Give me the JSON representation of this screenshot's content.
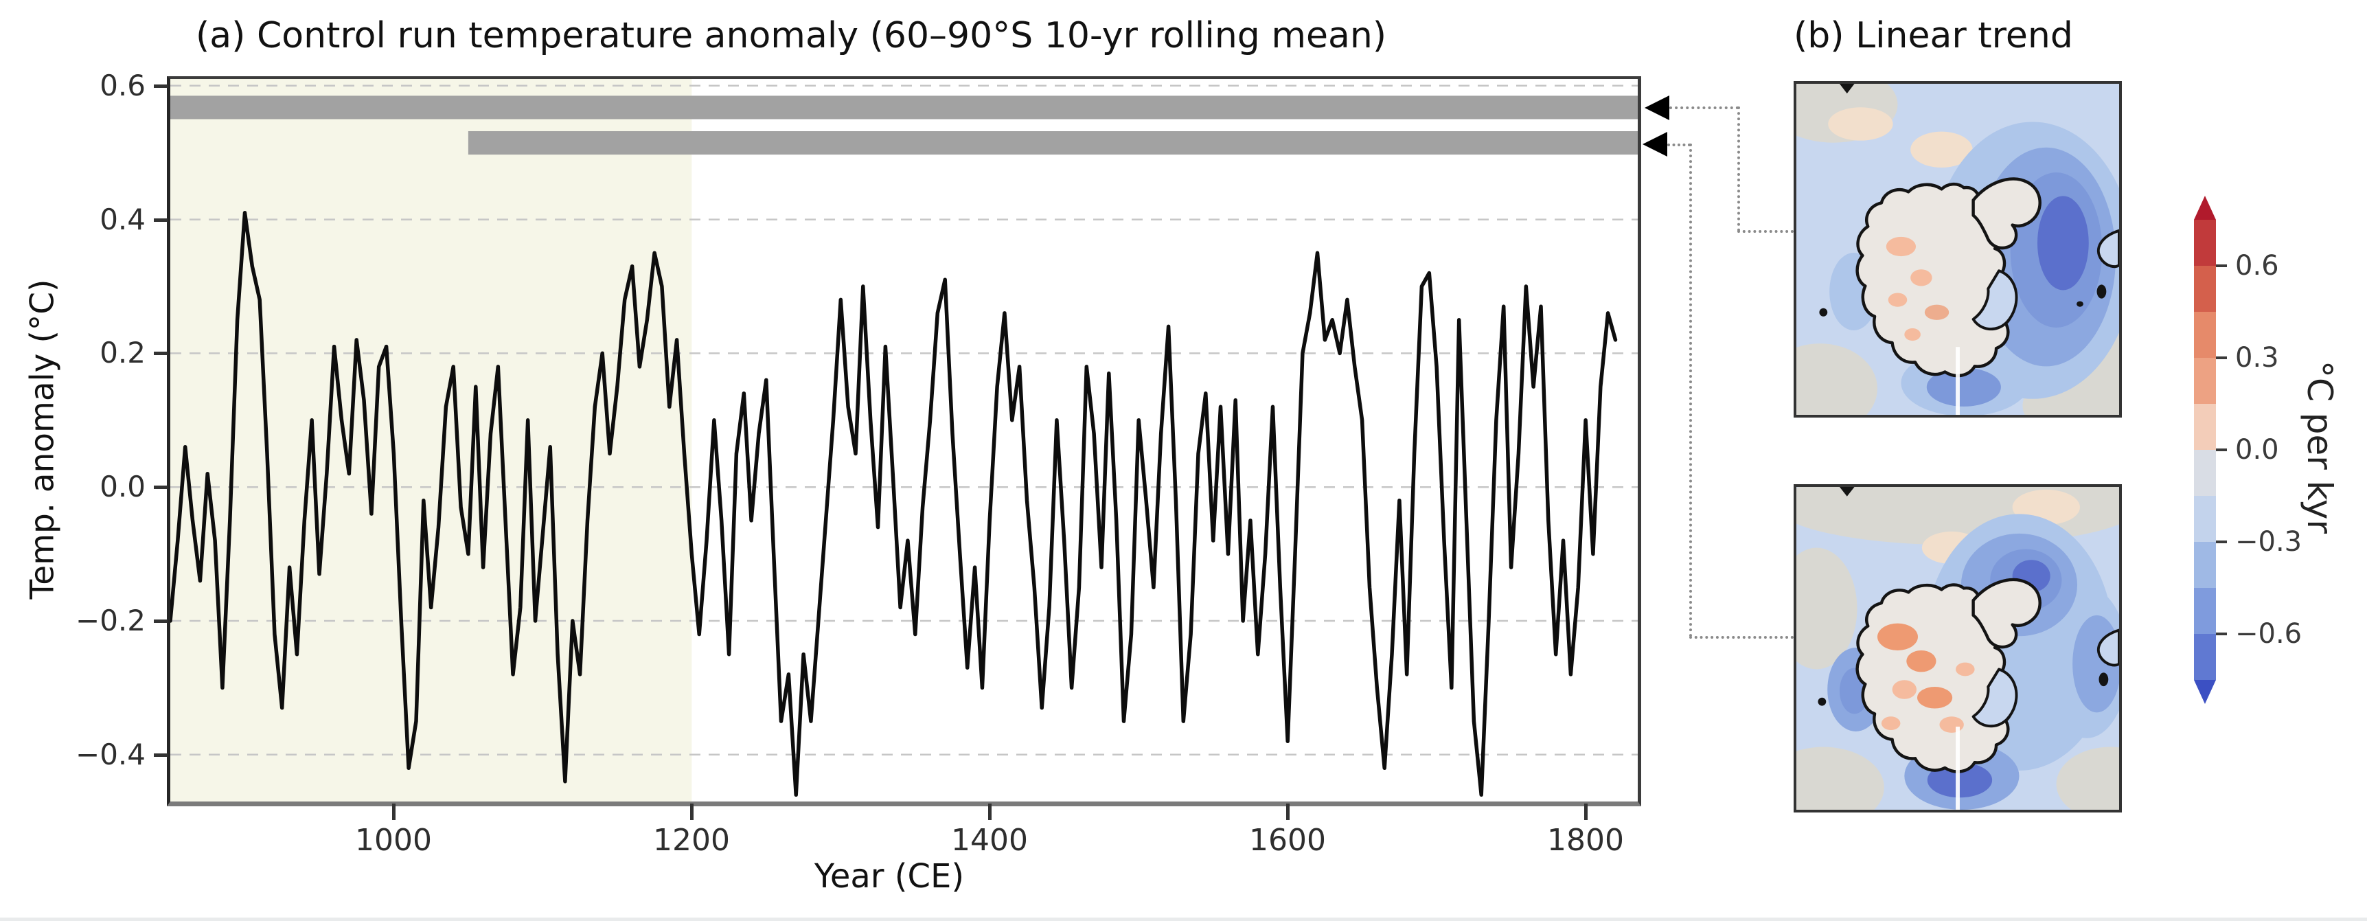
{
  "panel_a": {
    "title": "(a) Control run temperature anomaly (60–90°S 10-yr rolling mean)",
    "xlabel": "Year (CE)",
    "ylabel": "Temp. anomaly (°C)"
  },
  "panel_b": {
    "title": "(b) Linear trend"
  },
  "colorbar": {
    "label": "°C per kyr",
    "ticks": [
      "0.6",
      "0.3",
      "0.0",
      "−0.3",
      "−0.6"
    ],
    "range": [
      -0.75,
      0.75
    ]
  },
  "palette": {
    "shade_yellow": "#f6f6e8",
    "bar_gray": "#a2a2a2",
    "line_black": "#0d0d0d",
    "grid_gray": "#c6c6c6",
    "connector_gray": "#8a8a8a",
    "map_base": "#c8d7ef",
    "map_gray": "#d9d8d2",
    "map_peach": "#f2dfcc",
    "map_blue1": "#aec6ea",
    "map_blue2": "#8ca8e0",
    "map_blue3": "#7d99da",
    "map_blue4": "#5b70cc",
    "map_land": "#ebe7e2",
    "map_orange1": "#f5bb9e",
    "map_orange2": "#ee9a72",
    "map_outline": "#141414",
    "cb_arrow_top": "#b11a2c",
    "cb_arrow_bottom": "#3c50c3",
    "cb_stops": [
      "#c13a3b",
      "#d4604c",
      "#e68a6a",
      "#eda283",
      "#f3cdb9",
      "#d9dde5",
      "#c3d3ec",
      "#9fb9e5",
      "#7f9bdd",
      "#6079d2"
    ]
  },
  "chart_data": {
    "type": "line",
    "title": "(a) Control run temperature anomaly (60–90°S 10-yr rolling mean)",
    "xlabel": "Year (CE)",
    "ylabel": "Temp. anomaly (°C)",
    "xlim": [
      850,
      1835
    ],
    "ylim": [
      -0.47,
      0.61
    ],
    "xticks": [
      1000,
      1200,
      1400,
      1600,
      1800
    ],
    "yticks": [
      0.6,
      0.4,
      0.2,
      0.0,
      -0.2,
      -0.4
    ],
    "grid": "horizontal-dashed",
    "legend": "none",
    "shaded_region": {
      "x_start": 850,
      "x_end": 1200
    },
    "period_bars": [
      {
        "x_start": 850,
        "x_end": 1835,
        "y_top": 0.585,
        "y_bottom": 0.55
      },
      {
        "x_start": 1050,
        "x_end": 1835,
        "y_top": 0.532,
        "y_bottom": 0.497
      }
    ],
    "series": [
      {
        "name": "temp-anomaly-10yr-rolling-mean",
        "points": [
          [
            850,
            -0.2
          ],
          [
            855,
            -0.08
          ],
          [
            860,
            0.06
          ],
          [
            865,
            -0.05
          ],
          [
            870,
            -0.14
          ],
          [
            875,
            0.02
          ],
          [
            880,
            -0.08
          ],
          [
            885,
            -0.3
          ],
          [
            890,
            -0.05
          ],
          [
            895,
            0.25
          ],
          [
            900,
            0.41
          ],
          [
            905,
            0.33
          ],
          [
            910,
            0.28
          ],
          [
            915,
            0.05
          ],
          [
            920,
            -0.22
          ],
          [
            925,
            -0.33
          ],
          [
            930,
            -0.12
          ],
          [
            935,
            -0.25
          ],
          [
            940,
            -0.05
          ],
          [
            945,
            0.1
          ],
          [
            950,
            -0.13
          ],
          [
            955,
            0.02
          ],
          [
            960,
            0.21
          ],
          [
            965,
            0.1
          ],
          [
            970,
            0.02
          ],
          [
            975,
            0.22
          ],
          [
            980,
            0.13
          ],
          [
            985,
            -0.04
          ],
          [
            990,
            0.18
          ],
          [
            995,
            0.21
          ],
          [
            1000,
            0.05
          ],
          [
            1005,
            -0.2
          ],
          [
            1010,
            -0.42
          ],
          [
            1015,
            -0.35
          ],
          [
            1020,
            -0.02
          ],
          [
            1025,
            -0.18
          ],
          [
            1030,
            -0.06
          ],
          [
            1035,
            0.12
          ],
          [
            1040,
            0.18
          ],
          [
            1045,
            -0.03
          ],
          [
            1050,
            -0.1
          ],
          [
            1055,
            0.15
          ],
          [
            1060,
            -0.12
          ],
          [
            1065,
            0.08
          ],
          [
            1070,
            0.18
          ],
          [
            1075,
            -0.05
          ],
          [
            1080,
            -0.28
          ],
          [
            1085,
            -0.18
          ],
          [
            1090,
            0.1
          ],
          [
            1095,
            -0.2
          ],
          [
            1100,
            -0.07
          ],
          [
            1105,
            0.06
          ],
          [
            1110,
            -0.25
          ],
          [
            1115,
            -0.44
          ],
          [
            1120,
            -0.2
          ],
          [
            1125,
            -0.28
          ],
          [
            1130,
            -0.05
          ],
          [
            1135,
            0.12
          ],
          [
            1140,
            0.2
          ],
          [
            1145,
            0.05
          ],
          [
            1150,
            0.15
          ],
          [
            1155,
            0.28
          ],
          [
            1160,
            0.33
          ],
          [
            1165,
            0.18
          ],
          [
            1170,
            0.25
          ],
          [
            1175,
            0.35
          ],
          [
            1180,
            0.3
          ],
          [
            1185,
            0.12
          ],
          [
            1190,
            0.22
          ],
          [
            1195,
            0.05
          ],
          [
            1200,
            -0.1
          ],
          [
            1205,
            -0.22
          ],
          [
            1210,
            -0.08
          ],
          [
            1215,
            0.1
          ],
          [
            1220,
            -0.05
          ],
          [
            1225,
            -0.25
          ],
          [
            1230,
            0.05
          ],
          [
            1235,
            0.14
          ],
          [
            1240,
            -0.05
          ],
          [
            1245,
            0.08
          ],
          [
            1250,
            0.16
          ],
          [
            1255,
            -0.1
          ],
          [
            1260,
            -0.35
          ],
          [
            1265,
            -0.28
          ],
          [
            1270,
            -0.46
          ],
          [
            1275,
            -0.25
          ],
          [
            1280,
            -0.35
          ],
          [
            1285,
            -0.2
          ],
          [
            1290,
            -0.05
          ],
          [
            1295,
            0.1
          ],
          [
            1300,
            0.28
          ],
          [
            1305,
            0.12
          ],
          [
            1310,
            0.05
          ],
          [
            1315,
            0.3
          ],
          [
            1320,
            0.1
          ],
          [
            1325,
            -0.06
          ],
          [
            1330,
            0.21
          ],
          [
            1335,
            0.02
          ],
          [
            1340,
            -0.18
          ],
          [
            1345,
            -0.08
          ],
          [
            1350,
            -0.22
          ],
          [
            1355,
            -0.03
          ],
          [
            1360,
            0.1
          ],
          [
            1365,
            0.26
          ],
          [
            1370,
            0.31
          ],
          [
            1375,
            0.08
          ],
          [
            1380,
            -0.1
          ],
          [
            1385,
            -0.27
          ],
          [
            1390,
            -0.12
          ],
          [
            1395,
            -0.3
          ],
          [
            1400,
            -0.05
          ],
          [
            1405,
            0.15
          ],
          [
            1410,
            0.26
          ],
          [
            1415,
            0.1
          ],
          [
            1420,
            0.18
          ],
          [
            1425,
            -0.02
          ],
          [
            1430,
            -0.15
          ],
          [
            1435,
            -0.33
          ],
          [
            1440,
            -0.18
          ],
          [
            1445,
            0.1
          ],
          [
            1450,
            -0.08
          ],
          [
            1455,
            -0.3
          ],
          [
            1460,
            -0.15
          ],
          [
            1465,
            0.18
          ],
          [
            1470,
            0.08
          ],
          [
            1475,
            -0.12
          ],
          [
            1480,
            0.17
          ],
          [
            1485,
            -0.05
          ],
          [
            1490,
            -0.35
          ],
          [
            1495,
            -0.22
          ],
          [
            1500,
            0.1
          ],
          [
            1505,
            -0.02
          ],
          [
            1510,
            -0.15
          ],
          [
            1515,
            0.08
          ],
          [
            1520,
            0.24
          ],
          [
            1525,
            -0.02
          ],
          [
            1530,
            -0.35
          ],
          [
            1535,
            -0.22
          ],
          [
            1540,
            0.05
          ],
          [
            1545,
            0.14
          ],
          [
            1550,
            -0.08
          ],
          [
            1555,
            0.12
          ],
          [
            1560,
            -0.1
          ],
          [
            1565,
            0.13
          ],
          [
            1570,
            -0.2
          ],
          [
            1575,
            -0.05
          ],
          [
            1580,
            -0.25
          ],
          [
            1585,
            -0.1
          ],
          [
            1590,
            0.12
          ],
          [
            1595,
            -0.15
          ],
          [
            1600,
            -0.38
          ],
          [
            1605,
            -0.1
          ],
          [
            1610,
            0.2
          ],
          [
            1615,
            0.26
          ],
          [
            1620,
            0.35
          ],
          [
            1625,
            0.22
          ],
          [
            1630,
            0.25
          ],
          [
            1635,
            0.2
          ],
          [
            1640,
            0.28
          ],
          [
            1645,
            0.18
          ],
          [
            1650,
            0.1
          ],
          [
            1655,
            -0.15
          ],
          [
            1660,
            -0.3
          ],
          [
            1665,
            -0.42
          ],
          [
            1670,
            -0.25
          ],
          [
            1675,
            -0.02
          ],
          [
            1680,
            -0.28
          ],
          [
            1685,
            0.05
          ],
          [
            1690,
            0.3
          ],
          [
            1695,
            0.32
          ],
          [
            1700,
            0.18
          ],
          [
            1705,
            -0.08
          ],
          [
            1710,
            -0.3
          ],
          [
            1715,
            0.25
          ],
          [
            1720,
            -0.05
          ],
          [
            1725,
            -0.35
          ],
          [
            1730,
            -0.46
          ],
          [
            1735,
            -0.2
          ],
          [
            1740,
            0.1
          ],
          [
            1745,
            0.27
          ],
          [
            1750,
            -0.12
          ],
          [
            1755,
            0.05
          ],
          [
            1760,
            0.3
          ],
          [
            1765,
            0.15
          ],
          [
            1770,
            0.27
          ],
          [
            1775,
            -0.05
          ],
          [
            1780,
            -0.25
          ],
          [
            1785,
            -0.08
          ],
          [
            1790,
            -0.28
          ],
          [
            1795,
            -0.15
          ],
          [
            1800,
            0.1
          ],
          [
            1805,
            -0.1
          ],
          [
            1810,
            0.15
          ],
          [
            1815,
            0.26
          ],
          [
            1820,
            0.22
          ]
        ]
      }
    ]
  }
}
